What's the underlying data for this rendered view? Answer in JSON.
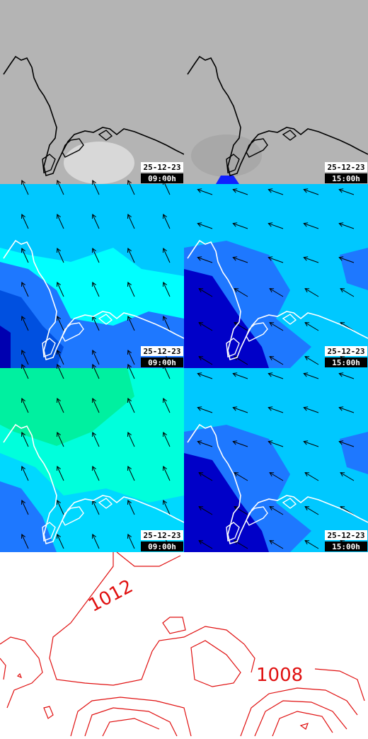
{
  "panels": [
    {
      "date": "25-12-23",
      "time": "09:00h"
    },
    {
      "date": "25-12-23",
      "time": "15:00h"
    },
    {
      "date": "25-12-23",
      "time": "09:00h"
    },
    {
      "date": "25-12-23",
      "time": "15:00h"
    },
    {
      "date": "25-12-23",
      "time": "09:00h"
    },
    {
      "date": "25-12-23",
      "time": "15:00h"
    }
  ],
  "isobar_labels": [
    "1012",
    "1008"
  ]
}
